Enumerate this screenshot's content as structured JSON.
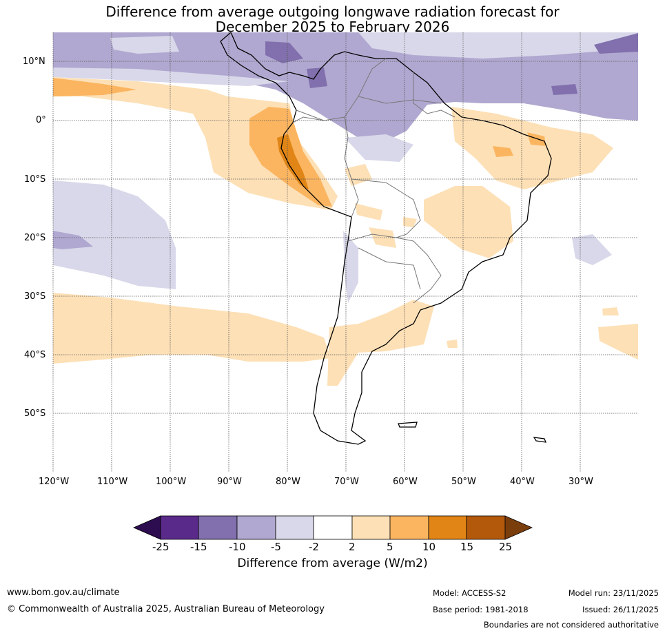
{
  "title": {
    "line1": "Difference from average outgoing longwave radiation forecast for",
    "line2": "December 2025 to February 2026"
  },
  "map": {
    "lat_labels": [
      "10°N",
      "0°",
      "10°S",
      "20°S",
      "30°S",
      "40°S",
      "50°S"
    ],
    "lon_labels": [
      "120°W",
      "110°W",
      "100°W",
      "90°W",
      "80°W",
      "70°W",
      "60°W",
      "50°W",
      "40°W",
      "30°W"
    ],
    "gridlines": true,
    "region": "South America"
  },
  "legend": {
    "bounds": [
      "-25",
      "-15",
      "-10",
      "-5",
      "-2",
      "2",
      "5",
      "10",
      "15",
      "25"
    ],
    "colors": [
      "#2d0c4f",
      "#5a2a8a",
      "#8170ad",
      "#b0a8d0",
      "#d8d8ea",
      "#ffffff",
      "#fde0b6",
      "#fbb560",
      "#e08516",
      "#b3590c",
      "#7a3d0c"
    ],
    "label": "Difference from average (W/m2)"
  },
  "footer": {
    "website": "www.bom.gov.au/climate",
    "copyright": "© Commonwealth of Australia 2025, Australian Bureau of Meteorology",
    "model": "Model: ACCESS-S2",
    "base_period": "Base period: 1981-2018",
    "model_run": "Model run: 23/11/2025",
    "issued": "Issued: 26/11/2025",
    "disclaimer": "Boundaries are not considered authoritative"
  }
}
